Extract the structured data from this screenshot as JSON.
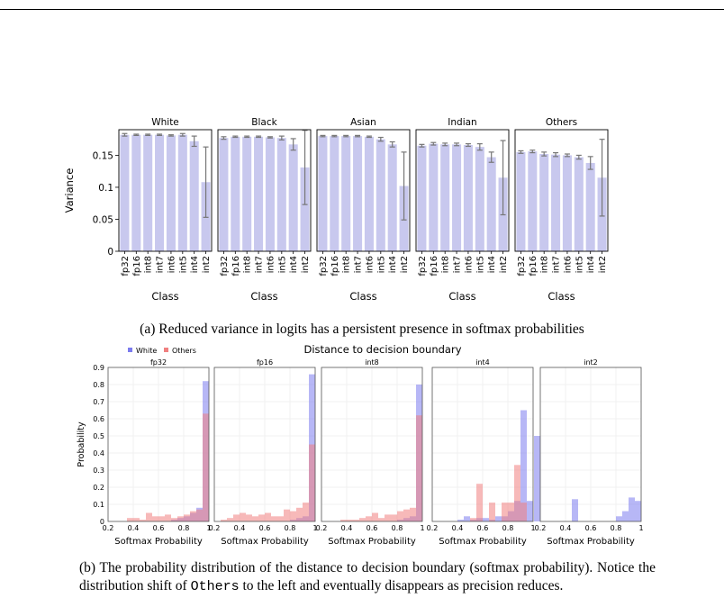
{
  "chart_data": [
    {
      "type": "bar",
      "panel": "a",
      "ylabel": "Variance",
      "xlabel": "Class",
      "ylim": [
        0,
        0.19
      ],
      "yticks": [
        0,
        0.05,
        0.1,
        0.15
      ],
      "ytick_labels": [
        "0",
        "0.05",
        "0.1",
        "0.15"
      ],
      "categories": [
        "fp32",
        "fp16",
        "int8",
        "int7",
        "int6",
        "int5",
        "int4",
        "int2"
      ],
      "bar_color": "#c8c8ee",
      "error_color": "#777777",
      "series": [
        {
          "name": "White",
          "values": [
            0.182,
            0.182,
            0.182,
            0.182,
            0.181,
            0.182,
            0.172,
            0.108
          ],
          "errors": [
            0.002,
            0.001,
            0.001,
            0.001,
            0.001,
            0.002,
            0.008,
            0.055
          ]
        },
        {
          "name": "Black",
          "values": [
            0.177,
            0.179,
            0.179,
            0.179,
            0.178,
            0.177,
            0.167,
            0.131
          ],
          "errors": [
            0.002,
            0.001,
            0.001,
            0.001,
            0.001,
            0.003,
            0.009,
            0.058
          ]
        },
        {
          "name": "Asian",
          "values": [
            0.18,
            0.18,
            0.18,
            0.18,
            0.179,
            0.175,
            0.167,
            0.102
          ],
          "errors": [
            0.001,
            0.001,
            0.001,
            0.001,
            0.001,
            0.003,
            0.004,
            0.053
          ]
        },
        {
          "name": "Indian",
          "values": [
            0.165,
            0.168,
            0.167,
            0.167,
            0.166,
            0.163,
            0.147,
            0.115
          ],
          "errors": [
            0.002,
            0.002,
            0.002,
            0.002,
            0.002,
            0.005,
            0.008,
            0.058
          ]
        },
        {
          "name": "Others",
          "values": [
            0.155,
            0.156,
            0.152,
            0.151,
            0.15,
            0.147,
            0.138,
            0.115
          ],
          "errors": [
            0.002,
            0.002,
            0.003,
            0.003,
            0.002,
            0.003,
            0.01,
            0.06
          ]
        }
      ]
    },
    {
      "type": "bar",
      "panel": "b",
      "title": "Distance to decision boundary",
      "ylabel": "Probability",
      "xlabel": "Softmax Probability",
      "ylim": [
        0,
        0.9
      ],
      "yticks": [
        0,
        0.1,
        0.2,
        0.3,
        0.4,
        0.5,
        0.6,
        0.7,
        0.8,
        0.9
      ],
      "ytick_labels": [
        "0",
        "0.1",
        "0.2",
        "0.3",
        "0.4",
        "0.5",
        "0.6",
        "0.7",
        "0.8",
        "0.9"
      ],
      "xlim": [
        0.2,
        1.0
      ],
      "xticks": [
        0.2,
        0.4,
        0.6,
        0.8,
        1.0
      ],
      "xtick_labels": [
        "0.2",
        "0.4",
        "0.6",
        "0.8",
        "1"
      ],
      "bin_width": 0.05,
      "legend": {
        "placement": "top-left",
        "entries": [
          {
            "label": "White",
            "color": "#7b7bee"
          },
          {
            "label": "Others",
            "color": "#f08080"
          }
        ]
      },
      "white_color": "#7b7bee",
      "others_color": "#f08080",
      "subplots": [
        {
          "title": "fp32",
          "white": {
            "x": [
              0.75,
              0.8,
              0.85,
              0.9,
              0.95,
              1.0
            ],
            "y": [
              0.01,
              0.02,
              0.03,
              0.05,
              0.08,
              0.82
            ]
          },
          "others": {
            "x": [
              0.4,
              0.45,
              0.5,
              0.55,
              0.6,
              0.65,
              0.7,
              0.75,
              0.8,
              0.85,
              0.9,
              0.95,
              1.0
            ],
            "y": [
              0.02,
              0.02,
              0.01,
              0.05,
              0.03,
              0.03,
              0.04,
              0.02,
              0.03,
              0.04,
              0.06,
              0.07,
              0.63
            ]
          }
        },
        {
          "title": "fp16",
          "white": {
            "x": [
              0.85,
              0.9,
              0.95,
              1.0
            ],
            "y": [
              0.01,
              0.02,
              0.03,
              0.86
            ]
          },
          "others": {
            "x": [
              0.3,
              0.35,
              0.4,
              0.45,
              0.5,
              0.55,
              0.6,
              0.65,
              0.7,
              0.75,
              0.8,
              0.85,
              0.9,
              0.95,
              1.0
            ],
            "y": [
              0.01,
              0.02,
              0.04,
              0.05,
              0.04,
              0.03,
              0.04,
              0.05,
              0.03,
              0.03,
              0.07,
              0.06,
              0.08,
              0.11,
              0.45
            ]
          }
        },
        {
          "title": "int8",
          "white": {
            "x": [
              0.85,
              0.9,
              0.95,
              1.0
            ],
            "y": [
              0.01,
              0.02,
              0.03,
              0.8
            ]
          },
          "others": {
            "x": [
              0.4,
              0.45,
              0.5,
              0.55,
              0.6,
              0.65,
              0.7,
              0.75,
              0.8,
              0.85,
              0.9,
              0.95,
              1.0
            ],
            "y": [
              0.01,
              0.01,
              0.01,
              0.02,
              0.03,
              0.05,
              0.02,
              0.04,
              0.04,
              0.06,
              0.07,
              0.08,
              0.62
            ]
          }
        },
        {
          "title": "int4",
          "white": {
            "x": [
              0.45,
              0.5,
              0.55,
              0.6,
              0.65,
              0.7,
              0.75,
              0.8,
              0.85,
              0.9,
              0.95,
              1.0
            ],
            "y": [
              0.01,
              0.03,
              0.01,
              0.02,
              0.02,
              0.01,
              0.03,
              0.03,
              0.06,
              0.12,
              0.65,
              0.12
            ]
          },
          "others": {
            "x": [
              0.55,
              0.6,
              0.65,
              0.7,
              0.75,
              0.8,
              0.85,
              0.9,
              0.95
            ],
            "y": [
              0.02,
              0.22,
              0.0,
              0.11,
              0.0,
              0.11,
              0.11,
              0.33,
              0.11
            ]
          }
        },
        {
          "title": "int2",
          "white": {
            "x": [
              0.2,
              0.5,
              0.85,
              0.9,
              0.95,
              1.0
            ],
            "y": [
              0.5,
              0.13,
              0.03,
              0.06,
              0.14,
              0.12
            ]
          },
          "others": {
            "x": [],
            "y": []
          }
        }
      ]
    }
  ],
  "captions": {
    "a": "(a) Reduced variance in logits has a persistent presence in softmax probabilities",
    "b_part1": "(b) The probability distribution of the distance to decision boundary (softmax probability).  Notice the distribution shift of ",
    "b_code": "Others",
    "b_part2": " to the left and eventually disappears as precision reduces."
  }
}
